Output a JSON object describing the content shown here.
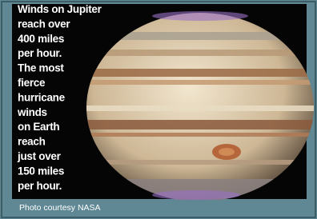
{
  "caption_lines": [
    "Winds on Jupiter",
    "reach over",
    "400 miles",
    "per hour.",
    "The most",
    "fierce",
    "hurricane",
    "winds",
    "on Earth",
    "reach",
    "just over",
    "150 miles",
    "per hour."
  ],
  "credit": "Photo courtesy NASA"
}
